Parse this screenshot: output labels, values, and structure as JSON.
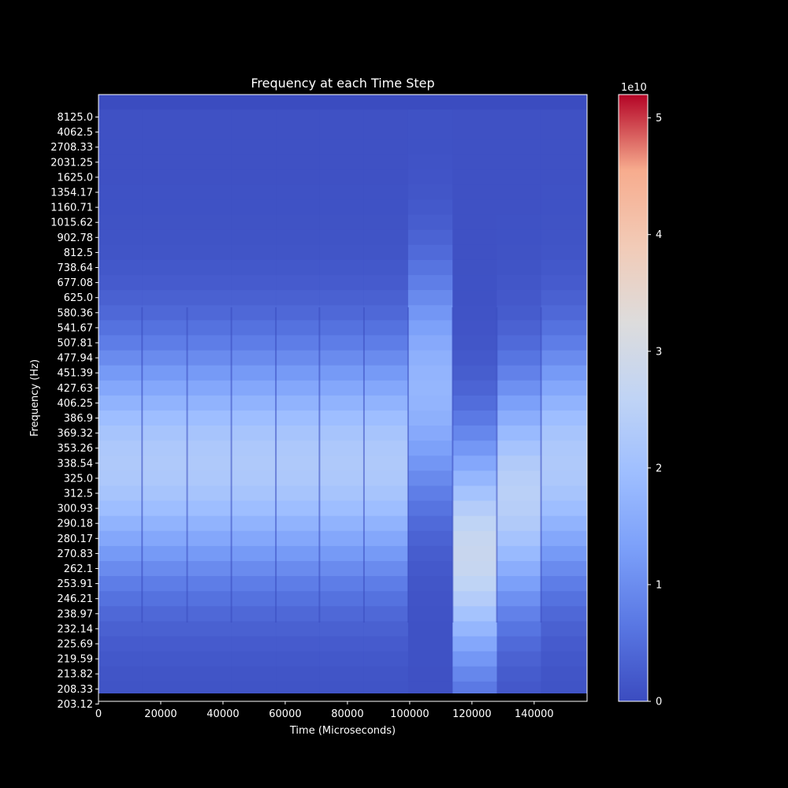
{
  "chart_data": {
    "type": "heatmap",
    "title": "Frequency at each Time Step",
    "xlabel": "Time (Microseconds)",
    "ylabel": "Frequency (Hz)",
    "x_ticks": [
      0,
      20000,
      40000,
      60000,
      80000,
      100000,
      120000,
      140000
    ],
    "x_tick_labels": [
      "0",
      "20000",
      "40000",
      "60000",
      "80000",
      "100000",
      "120000",
      "140000"
    ],
    "xlim": [
      0,
      157000
    ],
    "y_tick_labels": [
      "8125.0",
      "4062.5",
      "2708.33",
      "2031.25",
      "1625.0",
      "1354.17",
      "1160.71",
      "1015.62",
      "902.78",
      "812.5",
      "738.64",
      "677.08",
      "625.0",
      "580.36",
      "541.67",
      "507.81",
      "477.94",
      "451.39",
      "427.63",
      "406.25",
      "386.9",
      "369.32",
      "353.26",
      "338.54",
      "325.0",
      "312.5",
      "300.93",
      "290.18",
      "280.17",
      "270.83",
      "262.1",
      "253.91",
      "246.21",
      "238.97",
      "232.14",
      "225.69",
      "219.59",
      "213.82",
      "208.33",
      "203.12"
    ],
    "time_bins": [
      {
        "start": 0,
        "end": 14000,
        "peak_hz": 338.54,
        "peak_value": 2.2
      },
      {
        "start": 14000,
        "end": 28500,
        "peak_hz": 338.54,
        "peak_value": 2.2
      },
      {
        "start": 28500,
        "end": 42700,
        "peak_hz": 338.54,
        "peak_value": 2.2
      },
      {
        "start": 42700,
        "end": 57000,
        "peak_hz": 338.54,
        "peak_value": 2.2
      },
      {
        "start": 57000,
        "end": 71000,
        "peak_hz": 338.54,
        "peak_value": 2.2
      },
      {
        "start": 71000,
        "end": 85300,
        "peak_hz": 338.54,
        "peak_value": 2.2
      },
      {
        "start": 85300,
        "end": 99500,
        "peak_hz": 338.54,
        "peak_value": 2.2
      },
      {
        "start": 99500,
        "end": 113800,
        "peak_hz": 427.63,
        "peak_value": 1.7
      },
      {
        "start": 113800,
        "end": 128000,
        "peak_hz": 270.83,
        "peak_value": 2.7
      },
      {
        "start": 128000,
        "end": 142200,
        "peak_hz": 312.5,
        "peak_value": 2.4
      },
      {
        "start": 142200,
        "end": 157000,
        "peak_hz": 338.54,
        "peak_value": 2.2
      }
    ],
    "colorbar": {
      "label_multiplier": "1e10",
      "range": [
        0,
        5.2
      ],
      "ticks": [
        0,
        1,
        2,
        3,
        4,
        5
      ],
      "tick_labels": [
        "0",
        "1",
        "2",
        "3",
        "4",
        "5"
      ],
      "colormap": "coolwarm"
    },
    "grid": false,
    "legend": "none"
  }
}
